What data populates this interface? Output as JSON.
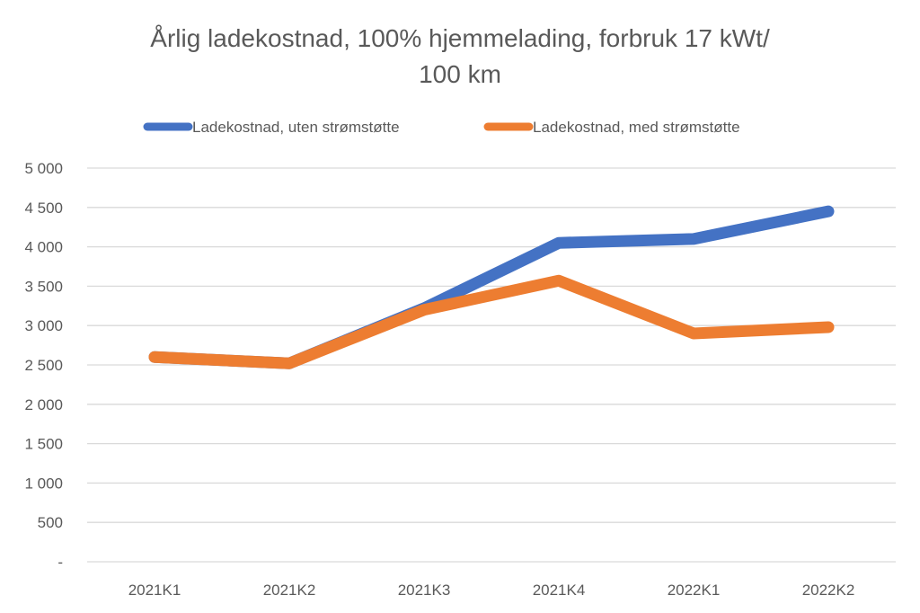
{
  "chart_data": {
    "type": "line",
    "title_lines": [
      "Årlig ladekostnad, 100% hjemmelading, forbruk 17 kWt/",
      "100 km"
    ],
    "categories": [
      "2021K1",
      "2021K2",
      "2021K3",
      "2021K4",
      "2022K1",
      "2022K2"
    ],
    "series": [
      {
        "name": "Ladekostnad, uten strømstøtte",
        "color": "#4472C4",
        "values": [
          2600,
          2520,
          3220,
          4050,
          4100,
          4450
        ]
      },
      {
        "name": "Ladekostnad, med strømstøtte",
        "color": "#ED7D31",
        "values": [
          2600,
          2520,
          3200,
          3570,
          2900,
          2980
        ]
      }
    ],
    "y_ticks": [
      {
        "value": 0,
        "label": "-"
      },
      {
        "value": 500,
        "label": "500"
      },
      {
        "value": 1000,
        "label": "1 000"
      },
      {
        "value": 1500,
        "label": "1 500"
      },
      {
        "value": 2000,
        "label": "2 000"
      },
      {
        "value": 2500,
        "label": "2 500"
      },
      {
        "value": 3000,
        "label": "3 000"
      },
      {
        "value": 3500,
        "label": "3 500"
      },
      {
        "value": 4000,
        "label": "4 000"
      },
      {
        "value": 4500,
        "label": "4 500"
      },
      {
        "value": 5000,
        "label": "5 000"
      }
    ],
    "ylim": [
      0,
      5000
    ],
    "xlabel": "",
    "ylabel": "",
    "grid": true,
    "legend_position": "top"
  }
}
